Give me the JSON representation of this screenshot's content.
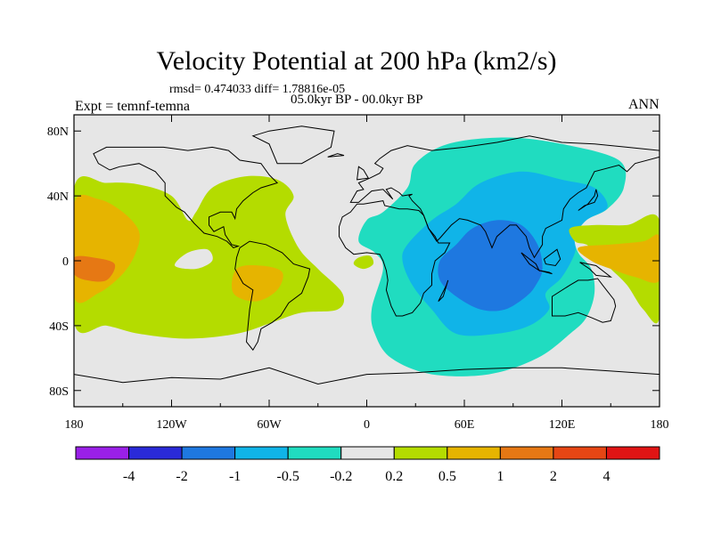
{
  "chart_data": {
    "type": "heatmap",
    "title": "Velocity Potential at 200 hPa (km2/s)",
    "subtitle_stats": "rmsd= 0.474033 diff= 1.78816e-05",
    "left_string": "Expt = temnf-temna",
    "center_string": "05.0kyr BP - 00.0kyr BP",
    "right_string": "ANN",
    "x_ticks": [
      "180",
      "120W",
      "60W",
      "0",
      "60E",
      "120E",
      "180"
    ],
    "x_values": [
      -180,
      -120,
      -60,
      0,
      60,
      120,
      180
    ],
    "y_ticks": [
      "80N",
      "40N",
      "0",
      "40S",
      "80S"
    ],
    "y_values": [
      80,
      40,
      0,
      -40,
      -80
    ],
    "xlim": [
      -180,
      180
    ],
    "ylim": [
      -90,
      90
    ],
    "colorbar": {
      "labels": [
        "-4",
        "-2",
        "-1",
        "-0.5",
        "-0.2",
        "0.2",
        "0.5",
        "1",
        "2",
        "4"
      ],
      "colors": [
        "#9a20e8",
        "#2a2ad8",
        "#1e78e0",
        "#10b4e8",
        "#20dcc0",
        "#e6e6e6",
        "#b4dc00",
        "#e6b400",
        "#e67814",
        "#e64614",
        "#e01414"
      ]
    },
    "regions": [
      {
        "level": "-0.5",
        "color": "#20dcc0",
        "poly": [
          [
            10,
            30
          ],
          [
            25,
            45
          ],
          [
            30,
            60
          ],
          [
            50,
            72
          ],
          [
            85,
            76
          ],
          [
            120,
            72
          ],
          [
            155,
            62
          ],
          [
            158,
            45
          ],
          [
            148,
            32
          ],
          [
            135,
            25
          ],
          [
            128,
            15
          ],
          [
            130,
            5
          ],
          [
            138,
            -5
          ],
          [
            140,
            -20
          ],
          [
            135,
            -35
          ],
          [
            125,
            -45
          ],
          [
            105,
            -60
          ],
          [
            75,
            -70
          ],
          [
            40,
            -70
          ],
          [
            15,
            -60
          ],
          [
            5,
            -45
          ],
          [
            3,
            -30
          ],
          [
            10,
            -5
          ],
          [
            5,
            5
          ],
          [
            -5,
            12
          ],
          [
            0,
            25
          ]
        ]
      },
      {
        "level": "-1",
        "color": "#10b4e8",
        "poly": [
          [
            25,
            10
          ],
          [
            40,
            25
          ],
          [
            55,
            35
          ],
          [
            70,
            48
          ],
          [
            95,
            55
          ],
          [
            120,
            50
          ],
          [
            140,
            45
          ],
          [
            148,
            33
          ],
          [
            135,
            25
          ],
          [
            128,
            15
          ],
          [
            128,
            5
          ],
          [
            120,
            -10
          ],
          [
            110,
            -20
          ],
          [
            112,
            -30
          ],
          [
            100,
            -40
          ],
          [
            80,
            -45
          ],
          [
            55,
            -45
          ],
          [
            40,
            -30
          ],
          [
            28,
            -15
          ],
          [
            22,
            0
          ]
        ]
      },
      {
        "level": "-2",
        "color": "#1e78e0",
        "poly": [
          [
            45,
            0
          ],
          [
            55,
            10
          ],
          [
            65,
            20
          ],
          [
            80,
            25
          ],
          [
            95,
            22
          ],
          [
            105,
            10
          ],
          [
            108,
            -5
          ],
          [
            104,
            -15
          ],
          [
            98,
            -22
          ],
          [
            85,
            -30
          ],
          [
            70,
            -30
          ],
          [
            55,
            -22
          ],
          [
            45,
            -12
          ]
        ]
      },
      {
        "level": "0.2",
        "color": "#b4dc00",
        "poly": [
          [
            -180,
            45
          ],
          [
            -160,
            48
          ],
          [
            -140,
            47
          ],
          [
            -120,
            40
          ],
          [
            -110,
            25
          ],
          [
            -105,
            30
          ],
          [
            -95,
            45
          ],
          [
            -75,
            52
          ],
          [
            -55,
            50
          ],
          [
            -45,
            40
          ],
          [
            -50,
            28
          ],
          [
            -42,
            8
          ],
          [
            -30,
            -5
          ],
          [
            -15,
            -20
          ],
          [
            -18,
            -30
          ],
          [
            -40,
            -32
          ],
          [
            -58,
            -38
          ],
          [
            -80,
            -45
          ],
          [
            -110,
            -48
          ],
          [
            -140,
            -45
          ],
          [
            -160,
            -40
          ],
          [
            -180,
            -38
          ]
        ]
      },
      {
        "level": "0.5",
        "color": "#e6b400",
        "poly": [
          [
            -180,
            35
          ],
          [
            -165,
            38
          ],
          [
            -150,
            30
          ],
          [
            -140,
            18
          ],
          [
            -142,
            5
          ],
          [
            -150,
            -8
          ],
          [
            -165,
            -20
          ],
          [
            -180,
            -22
          ]
        ]
      },
      {
        "level": "0.5",
        "color": "#e6b400",
        "poly": [
          [
            -80,
            -5
          ],
          [
            -65,
            -3
          ],
          [
            -52,
            -7
          ],
          [
            -55,
            -18
          ],
          [
            -68,
            -25
          ],
          [
            -82,
            -20
          ]
        ]
      },
      {
        "level": "1",
        "color": "#e67814",
        "poly": [
          [
            -180,
            2
          ],
          [
            -168,
            2
          ],
          [
            -155,
            -2
          ],
          [
            -160,
            -12
          ],
          [
            -172,
            -12
          ],
          [
            -180,
            -8
          ]
        ]
      },
      {
        "level": "-0.2",
        "color": "#e6e6e6",
        "poly": [
          [
            -110,
            5
          ],
          [
            -98,
            7
          ],
          [
            -95,
            0
          ],
          [
            -105,
            -5
          ],
          [
            -118,
            -3
          ]
        ]
      },
      {
        "level": "0.2",
        "color": "#b4dc00",
        "poly": [
          [
            -5,
            2
          ],
          [
            2,
            3
          ],
          [
            4,
            -2
          ],
          [
            -2,
            -5
          ],
          [
            -8,
            -2
          ]
        ]
      },
      {
        "level": "0.2",
        "color": "#b4dc00",
        "poly": [
          [
            125,
            20
          ],
          [
            140,
            22
          ],
          [
            160,
            22
          ],
          [
            180,
            25
          ],
          [
            180,
            -35
          ],
          [
            170,
            -30
          ],
          [
            160,
            -15
          ],
          [
            150,
            -5
          ],
          [
            140,
            5
          ],
          [
            135,
            10
          ],
          [
            128,
            12
          ]
        ]
      },
      {
        "level": "0.5",
        "color": "#e6b400",
        "poly": [
          [
            130,
            8
          ],
          [
            150,
            10
          ],
          [
            170,
            12
          ],
          [
            180,
            15
          ],
          [
            180,
            -12
          ],
          [
            165,
            -10
          ],
          [
            150,
            -5
          ],
          [
            138,
            0
          ]
        ]
      }
    ]
  }
}
